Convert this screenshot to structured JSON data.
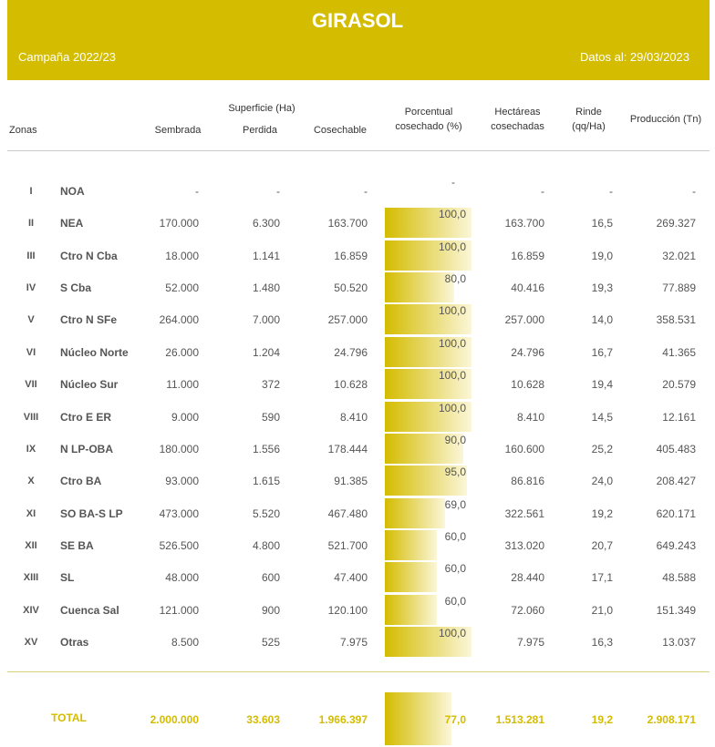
{
  "header": {
    "title": "GIRASOL",
    "campaign": "Campaña 2022/23",
    "date": "Datos al: 29/03/2023"
  },
  "table": {
    "group_header": "Superficie (Ha)",
    "columns": [
      "Zonas",
      "Sembrada",
      "Perdida",
      "Cosechable",
      "Porcentual cosechado (%)",
      "Hectáreas cosechadas",
      "Rinde (qq/Ha)",
      "Producción (Tn)"
    ],
    "rows": [
      [
        "I",
        "NOA",
        "-",
        "-",
        "-",
        "-",
        "-",
        "-",
        "-"
      ],
      [
        "II",
        "NEA",
        "170.000",
        "6.300",
        "163.700",
        "100,0",
        "163.700",
        "16,5",
        "269.327"
      ],
      [
        "III",
        "Ctro N Cba",
        "18.000",
        "1.141",
        "16.859",
        "100,0",
        "16.859",
        "19,0",
        "32.021"
      ],
      [
        "IV",
        "S Cba",
        "52.000",
        "1.480",
        "50.520",
        "80,0",
        "40.416",
        "19,3",
        "77.889"
      ],
      [
        "V",
        "Ctro N SFe",
        "264.000",
        "7.000",
        "257.000",
        "100,0",
        "257.000",
        "14,0",
        "358.531"
      ],
      [
        "VI",
        "Núcleo Norte",
        "26.000",
        "1.204",
        "24.796",
        "100,0",
        "24.796",
        "16,7",
        "41.365"
      ],
      [
        "VII",
        "Núcleo Sur",
        "11.000",
        "372",
        "10.628",
        "100,0",
        "10.628",
        "19,4",
        "20.579"
      ],
      [
        "VIII",
        "Ctro E ER",
        "9.000",
        "590",
        "8.410",
        "100,0",
        "8.410",
        "14,5",
        "12.161"
      ],
      [
        "IX",
        "N LP-OBA",
        "180.000",
        "1.556",
        "178.444",
        "90,0",
        "160.600",
        "25,2",
        "405.483"
      ],
      [
        "X",
        "Ctro BA",
        "93.000",
        "1.615",
        "91.385",
        "95,0",
        "86.816",
        "24,0",
        "208.427"
      ],
      [
        "XI",
        "SO BA-S LP",
        "473.000",
        "5.520",
        "467.480",
        "69,0",
        "322.561",
        "19,2",
        "620.171"
      ],
      [
        "XII",
        "SE BA",
        "526.500",
        "4.800",
        "521.700",
        "60,0",
        "313.020",
        "20,7",
        "649.243"
      ],
      [
        "XIII",
        "SL",
        "48.000",
        "600",
        "47.400",
        "60,0",
        "28.440",
        "17,1",
        "48.588"
      ],
      [
        "XIV",
        "Cuenca Sal",
        "121.000",
        "900",
        "120.100",
        "60,0",
        "72.060",
        "21,0",
        "151.349"
      ],
      [
        "XV",
        "Otras",
        "8.500",
        "525",
        "7.975",
        "100,0",
        "7.975",
        "16,3",
        "13.037"
      ]
    ],
    "total": [
      "TOTAL",
      "2.000.000",
      "33.603",
      "1.966.397",
      "77,0",
      "1.513.281",
      "19,2",
      "2.908.171"
    ]
  }
}
